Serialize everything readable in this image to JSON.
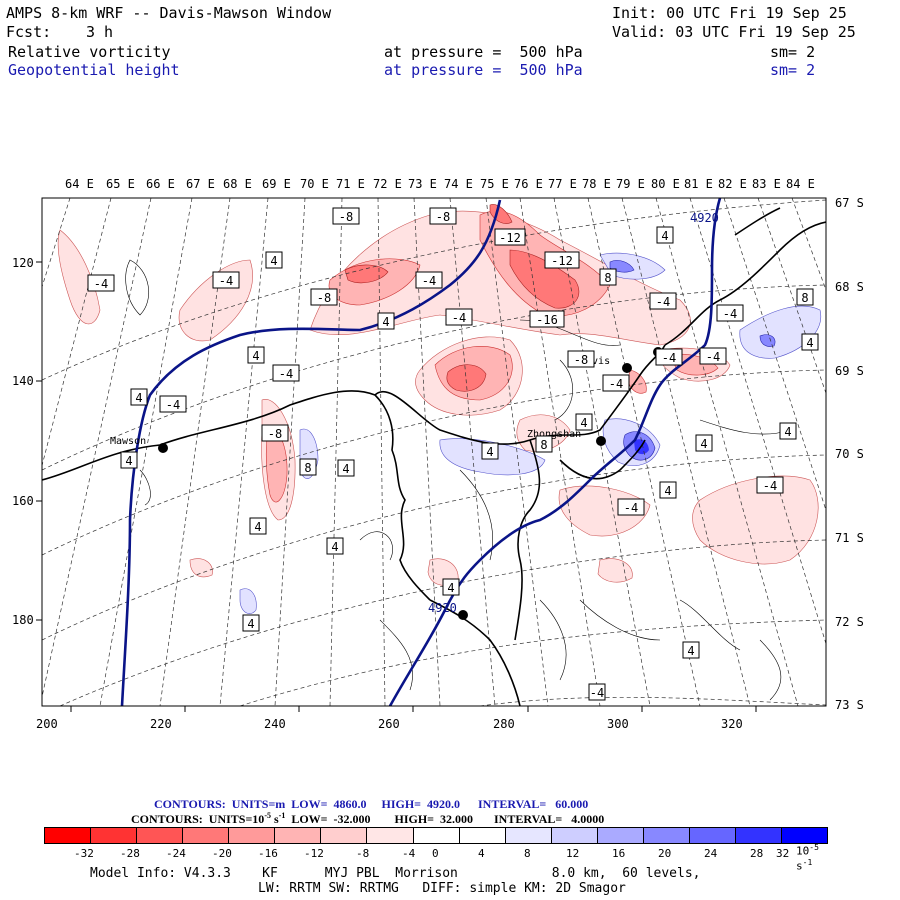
{
  "header": {
    "title": "AMPS 8-km WRF -- Davis-Mawson Window",
    "init": "Init: 00 UTC Fri 19 Sep 25",
    "fcst_label": "Fcst:",
    "fcst_value": "3 h",
    "valid": "Valid: 03 UTC Fri 19 Sep 25",
    "field1": {
      "name": "Relative vorticity",
      "level": "at pressure =  500 hPa",
      "smooth": "sm= 2"
    },
    "field2": {
      "name": "Geopotential height",
      "level": "at pressure =  500 hPa",
      "smooth": "sm= 2"
    }
  },
  "map": {
    "lon_labels": [
      "64 E",
      "65 E",
      "66 E",
      "67 E",
      "68 E",
      "69 E",
      "70 E",
      "71 E",
      "72 E",
      "73 E",
      "74 E",
      "75 E",
      "76 E",
      "77 E",
      "78 E",
      "79 E",
      "80 E",
      "81 E",
      "82 E",
      "83 E",
      "84 E"
    ],
    "lat_labels": [
      "67 S",
      "68 S",
      "69 S",
      "70 S",
      "71 S",
      "72 S",
      "73 S"
    ],
    "x_ticks": [
      "200",
      "220",
      "240",
      "260",
      "280",
      "300",
      "320"
    ],
    "y_ticks": [
      "120",
      "140",
      "160",
      "180"
    ],
    "stations": [
      {
        "name": "Mawson"
      },
      {
        "name": "Davis"
      },
      {
        "name": "Zhongshan"
      },
      {
        "name": ""
      },
      {
        "name": ""
      }
    ],
    "height_labels": [
      "4920",
      "4920"
    ],
    "vort_labels": [
      "-8",
      "-8",
      "-12",
      "-12",
      "-16",
      "-4",
      "-4",
      "-4",
      "-4",
      "-4",
      "-4",
      "-4",
      "-8",
      "-8",
      "-4",
      "-4",
      "-4",
      "-4",
      "-8",
      "8",
      "8",
      "4",
      "4",
      "4",
      "4",
      "4",
      "4",
      "4",
      "4",
      "4",
      "4",
      "4",
      "4",
      "4",
      "4",
      "4",
      "4",
      "8",
      "4",
      "8",
      "-4",
      "-4",
      "4",
      "-4"
    ]
  },
  "contours": {
    "line1": "CONTOURS:  UNITS=m  LOW=  4860.0     HIGH=  4920.0      INTERVAL=   60.000",
    "line2_a": "CONTOURS:  UNITS=10",
    "line2_exp": "-5",
    "line2_b": " s",
    "line2_exp2": "-1",
    "line2_c": "  LOW=  -32.000        HIGH=  32.000       INTERVAL=   4.0000"
  },
  "colorbar": {
    "labels": [
      "-32",
      "-28",
      "-24",
      "-20",
      "-16",
      "-12",
      "-8",
      "-4",
      "0",
      "4",
      "8",
      "12",
      "16",
      "20",
      "24",
      "28",
      "32"
    ],
    "unit": "10",
    "unit_exp": "-5",
    "unit_s": "s",
    "unit_exp2": "-1",
    "colors": [
      "#ff0000",
      "#ff3333",
      "#ff5555",
      "#ff7878",
      "#ff9a9a",
      "#ffb4b4",
      "#ffcece",
      "#ffe6e6",
      "#ffffff",
      "#ffffff",
      "#e6e6ff",
      "#ceceff",
      "#aaaaff",
      "#8888ff",
      "#6666ff",
      "#3333ff",
      "#0000ff"
    ]
  },
  "footer": {
    "line1": "Model Info: V4.3.3    KF      MYJ PBL  Morrison            8.0 km,  60 levels,",
    "line2": "LW: RRTM SW: RRTMG   DIFF: simple KM: 2D Smagor"
  }
}
